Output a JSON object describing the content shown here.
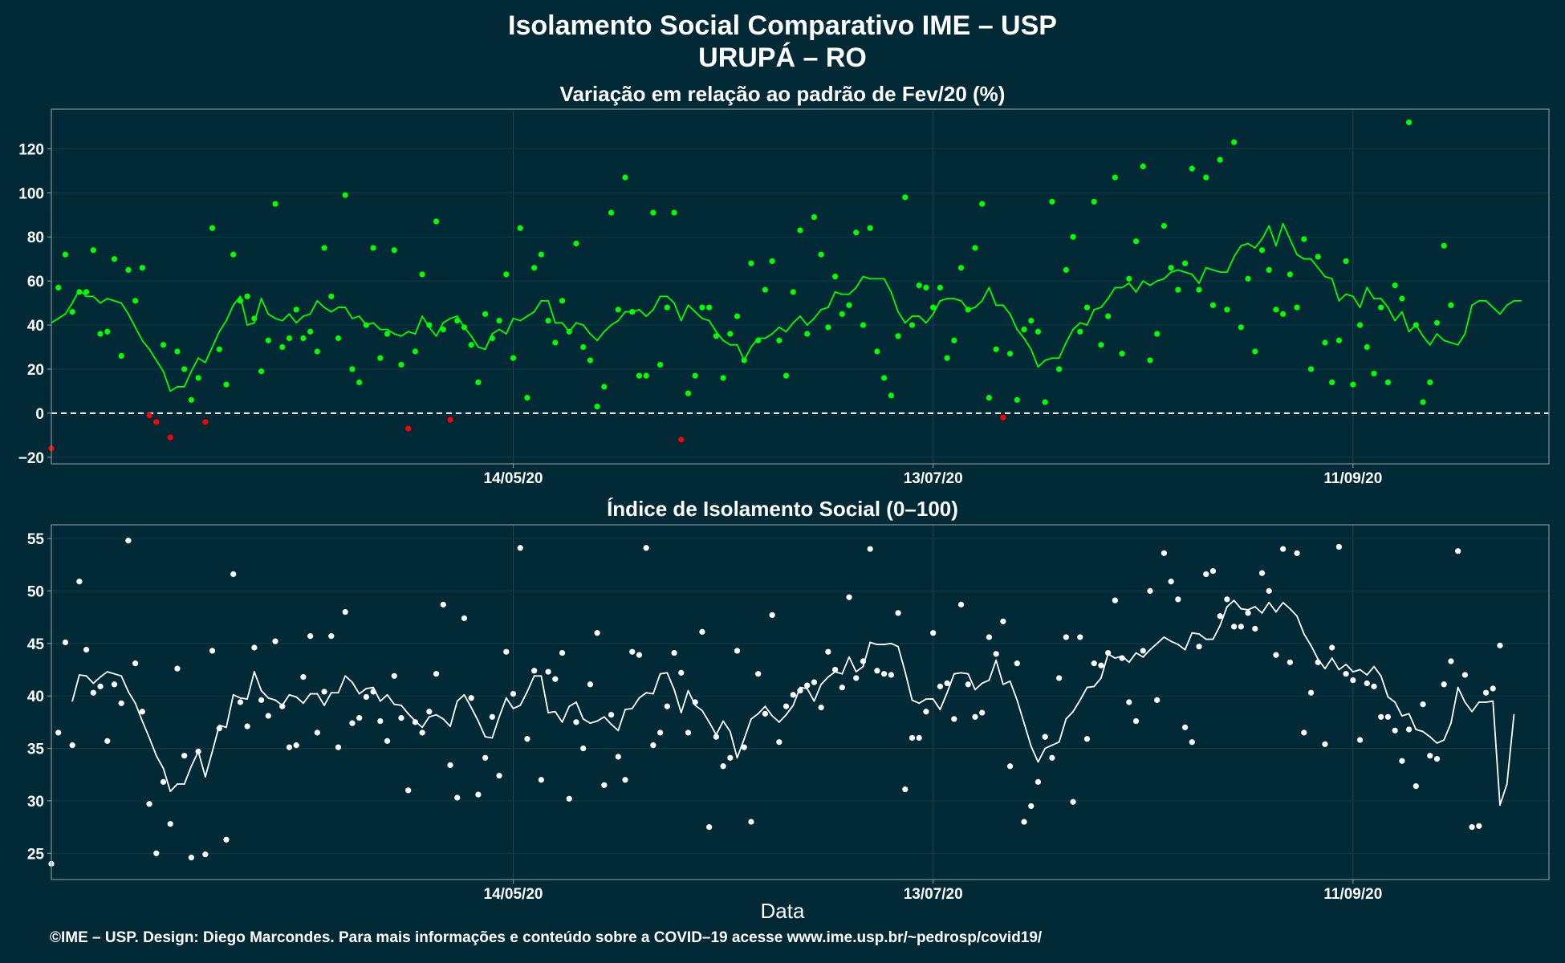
{
  "header": {
    "title": "Isolamento Social Comparativo IME – USP",
    "subtitle": "URUPÁ – RO"
  },
  "footer": {
    "xlabel": "Data",
    "credit": "©IME – USP. Design: Diego Marcondes. Para mais informações e conteúdo sobre a COVID–19 acesse www.ime.usp.br/~pedrosp/covid19/"
  },
  "colors": {
    "background": "#012a36",
    "above_baseline": "#00ff00",
    "below_baseline": "#ff0000",
    "index_series": "#ffffff",
    "frame": "#7f9299"
  },
  "chart_data": [
    {
      "type": "scatter",
      "title": "Variação em relação ao padrão de Fev/20 (%)",
      "xlabel": "",
      "ylabel": "",
      "x_start": "2020-03-09",
      "x_end": "2020-10-09",
      "x_ticks": [
        {
          "date": "2020-05-14",
          "label": "14/05/20"
        },
        {
          "date": "2020-07-13",
          "label": "13/07/20"
        },
        {
          "date": "2020-09-11",
          "label": "11/09/20"
        }
      ],
      "ylim": [
        -23,
        138
      ],
      "y_ticks": [
        -20,
        0,
        20,
        40,
        60,
        80,
        100,
        120
      ],
      "grid": true,
      "reference_line": {
        "y": 0,
        "style": "dashed"
      },
      "series": [
        {
          "kind": "points",
          "start": "2020-03-09",
          "values": [
            -16,
            57,
            72,
            46,
            55,
            55,
            74,
            36,
            37,
            70,
            26,
            65,
            51,
            66,
            -1,
            -4,
            31,
            -11,
            28,
            20,
            6,
            16,
            -4,
            84,
            29,
            13,
            72,
            51,
            53,
            43,
            19,
            33,
            95,
            30,
            34,
            47,
            34,
            37,
            28,
            75,
            53,
            34,
            99,
            20,
            14,
            40,
            75,
            25,
            36,
            74,
            22,
            -7,
            28,
            63,
            40,
            87,
            38,
            -3,
            42,
            39,
            31,
            14,
            45,
            34,
            42,
            63,
            25,
            84,
            7,
            66,
            72,
            42,
            32,
            51,
            37,
            77,
            30,
            24,
            3,
            12,
            91,
            47,
            107,
            46,
            17,
            17,
            91,
            22,
            48,
            91,
            -12,
            9,
            17,
            48,
            48,
            35,
            16,
            36,
            44,
            24,
            68,
            33,
            56,
            69,
            33,
            17,
            55,
            83,
            36,
            89,
            72,
            39,
            62,
            45,
            49,
            82,
            40,
            84,
            28,
            16,
            8,
            35,
            98,
            40,
            58,
            57,
            48,
            57,
            25,
            33,
            66,
            47,
            75,
            95,
            7,
            29,
            -2,
            27,
            6,
            38,
            42,
            37,
            5,
            96,
            20,
            65,
            80,
            37,
            48,
            96,
            31,
            44,
            107,
            27,
            61,
            78,
            112,
            24,
            36,
            85,
            66,
            56,
            68,
            111,
            56,
            107,
            49,
            115,
            47,
            123,
            39,
            61,
            28,
            74,
            65,
            47,
            45,
            63,
            48,
            79,
            20,
            71,
            32,
            14,
            33,
            69,
            13,
            40,
            30,
            18,
            48,
            14,
            58,
            52,
            132,
            40,
            5,
            14,
            41,
            76,
            49
          ]
        },
        {
          "kind": "moving_average",
          "start": "2020-03-09",
          "values": [
            41,
            43,
            45,
            50,
            56,
            53,
            53,
            50,
            52,
            51,
            50,
            45,
            39,
            33,
            29,
            24,
            19,
            10,
            12,
            12,
            19,
            25,
            23,
            30,
            37,
            42,
            49,
            53,
            40,
            41,
            52,
            45,
            43,
            42,
            45,
            41,
            44,
            45,
            51,
            48,
            46,
            48,
            48,
            43,
            44,
            40,
            41,
            38,
            38,
            36,
            35,
            37,
            36,
            44,
            39,
            35,
            41,
            43,
            44,
            39,
            35,
            30,
            29,
            36,
            38,
            36,
            43,
            42,
            44,
            46,
            51,
            51,
            41,
            41,
            37,
            41,
            40,
            36,
            33,
            37,
            40,
            42,
            46,
            46,
            47,
            44,
            47,
            53,
            53,
            50,
            42,
            49,
            46,
            43,
            42,
            37,
            33,
            31,
            31,
            24,
            30,
            34,
            34,
            36,
            39,
            37,
            41,
            44,
            40,
            43,
            47,
            48,
            55,
            54,
            54,
            57,
            62,
            61,
            61,
            61,
            55,
            46,
            41,
            44,
            44,
            41,
            45,
            51,
            52,
            52,
            51,
            47,
            48,
            51,
            57,
            49,
            49,
            45,
            38,
            34,
            29,
            21,
            24,
            25,
            25,
            32,
            38,
            41,
            40,
            47,
            48,
            52,
            57,
            57,
            59,
            55,
            60,
            58,
            60,
            61,
            64,
            65,
            64,
            63,
            59,
            66,
            65,
            64,
            64,
            71,
            76,
            77,
            75,
            79,
            85,
            76,
            86,
            79,
            72,
            70,
            70,
            66,
            62,
            61,
            51,
            54,
            53,
            48,
            57,
            52,
            52,
            48,
            42,
            46,
            37,
            40,
            35,
            31,
            36,
            33,
            32,
            31,
            36,
            49,
            51,
            51,
            48,
            45,
            49,
            51,
            51
          ]
        }
      ]
    },
    {
      "type": "scatter",
      "title": "Índice de Isolamento Social (0–100)",
      "xlabel": "Data",
      "ylabel": "",
      "x_start": "2020-03-09",
      "x_end": "2020-10-09",
      "x_ticks": [
        {
          "date": "2020-05-14",
          "label": "14/05/20"
        },
        {
          "date": "2020-07-13",
          "label": "13/07/20"
        },
        {
          "date": "2020-09-11",
          "label": "11/09/20"
        }
      ],
      "ylim": [
        22.5,
        56.3
      ],
      "y_ticks": [
        25,
        30,
        35,
        40,
        45,
        50,
        55
      ],
      "grid": true,
      "series": [
        {
          "kind": "points",
          "start": "2020-03-09",
          "values": [
            24.0,
            36.5,
            45.1,
            35.3,
            50.9,
            44.4,
            40.3,
            40.9,
            35.7,
            41.1,
            39.3,
            54.8,
            43.1,
            38.5,
            29.7,
            25.0,
            31.8,
            27.8,
            42.6,
            34.3,
            24.6,
            34.7,
            24.9,
            44.3,
            36.9,
            26.3,
            51.6,
            39.4,
            37.1,
            44.6,
            39.6,
            38.1,
            45.2,
            39.0,
            35.1,
            35.3,
            41.8,
            45.7,
            36.5,
            40.4,
            45.7,
            35.1,
            48.0,
            37.4,
            37.9,
            39.9,
            40.4,
            37.6,
            35.7,
            41.9,
            37.9,
            31.0,
            37.5,
            36.5,
            38.5,
            42.1,
            48.7,
            33.4,
            30.3,
            47.4,
            39.8,
            30.6,
            34.1,
            38.0,
            32.4,
            44.2,
            40.2,
            54.1,
            35.9,
            42.4,
            32.0,
            42.3,
            41.6,
            44.1,
            30.2,
            37.5,
            35.0,
            41.1,
            46.0,
            31.5,
            38.2,
            34.2,
            32.0,
            44.2,
            43.9,
            54.1,
            35.3,
            36.5,
            39.0,
            44.1,
            42.2,
            36.5,
            39.4,
            46.1,
            27.5,
            36.1,
            33.3,
            34.1,
            44.3,
            35.1,
            28.0,
            42.1,
            38.3,
            47.7,
            35.6,
            39.0,
            40.1,
            40.5,
            41.0,
            41.3,
            38.9,
            44.2,
            42.5,
            40.8,
            49.4,
            41.7,
            43.3,
            54.0,
            42.4,
            42.1,
            42.0,
            47.9,
            31.1,
            36.0,
            36.0,
            38.5,
            46.0,
            40.9,
            41.2,
            37.8,
            48.7,
            41.1,
            38.0,
            38.4,
            45.6,
            44.0,
            47.1,
            33.3,
            43.1,
            28.0,
            29.5,
            31.8,
            36.1,
            34.1,
            41.7,
            45.6,
            29.9,
            45.6,
            35.9,
            43.1,
            42.9,
            44.1,
            49.1,
            43.6,
            39.4,
            37.6,
            44.3,
            50.0,
            39.6,
            53.6,
            50.9,
            49.2,
            37.0,
            35.6,
            44.7,
            51.6,
            51.9,
            47.6,
            49.2,
            46.6,
            46.6,
            47.9,
            46.4,
            51.7,
            50.0,
            43.9,
            54.0,
            43.2,
            53.6,
            36.5,
            40.3,
            43.2,
            35.4,
            44.6,
            54.2,
            42.1,
            41.5,
            35.8,
            41.2,
            40.9,
            38.0,
            38.0,
            36.7,
            33.8,
            36.8,
            31.4,
            39.2,
            34.3,
            34.0,
            41.1,
            43.3,
            53.8,
            42.0,
            27.5,
            27.6,
            40.3,
            40.7,
            44.8
          ]
        },
        {
          "kind": "moving_average",
          "start": "2020-03-12",
          "values": [
            39.5,
            42.0,
            41.9,
            41.2,
            41.8,
            42.3,
            42.1,
            41.9,
            40.4,
            39.3,
            37.6,
            36.0,
            34.3,
            33.1,
            30.9,
            31.6,
            31.6,
            33.3,
            34.7,
            32.3,
            34.7,
            37.2,
            37.0,
            40.1,
            39.8,
            39.7,
            42.3,
            40.5,
            39.8,
            39.6,
            39.1,
            40.1,
            39.9,
            39.3,
            40.2,
            40.2,
            39.1,
            40.3,
            40.3,
            41.9,
            41.3,
            40.2,
            40.7,
            40.8,
            39.5,
            40.1,
            39.2,
            39.1,
            38.3,
            37.6,
            37.0,
            38.0,
            38.2,
            37.8,
            37.1,
            39.5,
            40.1,
            38.9,
            37.6,
            36.1,
            36.0,
            38.0,
            39.8,
            38.8,
            39.1,
            40.4,
            41.9,
            41.9,
            38.4,
            38.5,
            37.5,
            39.0,
            39.4,
            37.8,
            37.4,
            37.6,
            38.0,
            37.3,
            36.7,
            38.7,
            38.8,
            39.8,
            40.3,
            40.2,
            42.1,
            42.2,
            40.6,
            38.4,
            40.5,
            39.1,
            38.6,
            37.5,
            36.3,
            37.6,
            36.6,
            34.1,
            35.9,
            37.8,
            38.3,
            39.0,
            38.1,
            37.5,
            38.2,
            39.1,
            40.8,
            40.7,
            39.5,
            41.1,
            41.8,
            42.3,
            42.1,
            43.7,
            42.3,
            42.8,
            45.1,
            44.9,
            44.9,
            45.0,
            44.7,
            42.3,
            39.6,
            39.3,
            39.7,
            39.7,
            38.7,
            40.3,
            42.1,
            42.2,
            42.1,
            40.6,
            41.2,
            41.5,
            43.4,
            41.1,
            41.4,
            39.6,
            37.4,
            35.2,
            33.7,
            35.0,
            35.3,
            35.6,
            37.8,
            38.5,
            39.6,
            40.8,
            40.9,
            41.7,
            44.0,
            43.6,
            43.8,
            43.2,
            44.1,
            43.7,
            44.4,
            45.0,
            45.6,
            45.2,
            44.9,
            44.4,
            46.0,
            45.9,
            45.4,
            45.4,
            46.7,
            48.5,
            49.1,
            48.3,
            48.2,
            48.5,
            47.9,
            48.9,
            48.0,
            48.9,
            48.3,
            47.6,
            45.9,
            44.8,
            43.5,
            42.6,
            43.6,
            42.5,
            43.0,
            42.3,
            42.5,
            42.0,
            42.8,
            41.9,
            39.9,
            39.4,
            38.1,
            38.3,
            36.8,
            36.6,
            36.1,
            35.5,
            35.8,
            37.4,
            40.8,
            39.4,
            38.5,
            39.4,
            39.4,
            39.5,
            29.6,
            31.6,
            38.2
          ]
        }
      ]
    }
  ]
}
